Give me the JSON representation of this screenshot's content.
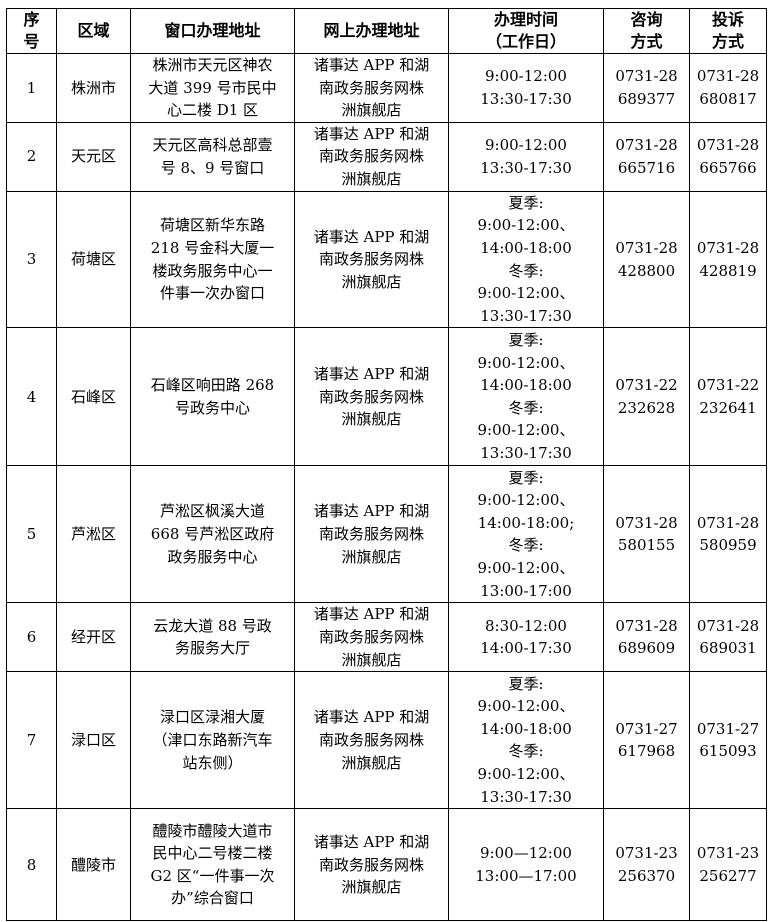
{
  "headers": [
    "序\n号",
    "区域",
    "窗口办理地址",
    "网上办理地址",
    "办理时间\n（工作日）",
    "咨询\n方式",
    "投诉\n方式"
  ],
  "rows": [
    {
      "no": "1",
      "area": "株洲市",
      "window": "株洲市天元区神农\n大道 399 号市民中\n心二楼 D1 区",
      "online": "诸事达 APP 和湖\n南政务服务网株\n洲旗舰店",
      "time": "9:00-12:00\n13:30-17:30",
      "consult": "0731-28\n689377",
      "complaint": "0731-28\n680817"
    },
    {
      "no": "2",
      "area": "天元区",
      "window": "天元区高科总部壹\n号 8、9 号窗口",
      "online": "诸事达 APP 和湖\n南政务服务网株\n洲旗舰店",
      "time": "9:00-12:00\n13:30-17:30",
      "consult": "0731-28\n665716",
      "complaint": "0731-28\n665766"
    },
    {
      "no": "3",
      "area": "荷塘区",
      "window": "荷塘区新华东路\n218 号金科大厦一\n楼政务服务中心一\n件事一次办窗口",
      "online": "诸事达 APP 和湖\n南政务服务网株\n洲旗舰店",
      "time": "夏季:\n9:00-12:00、\n14:00-18:00\n冬季:\n9:00-12:00、\n13:30-17:30",
      "consult": "0731-28\n428800",
      "complaint": "0731-28\n428819"
    },
    {
      "no": "4",
      "area": "石峰区",
      "window": "石峰区响田路 268\n号政务中心",
      "online": "诸事达 APP 和湖\n南政务服务网株\n洲旗舰店",
      "time": "夏季:\n9:00-12:00、\n14:00-18:00\n冬季:\n9:00-12:00、\n13:30-17:30",
      "consult": "0731-22\n232628",
      "complaint": "0731-22\n232641"
    },
    {
      "no": "5",
      "area": "芦淞区",
      "window": "芦淞区枫溪大道\n668 号芦淞区政府\n政务服务中心",
      "online": "诸事达 APP 和湖\n南政务服务网株\n洲旗舰店",
      "time": "夏季:\n9:00-12:00、\n14:00-18:00;\n冬季:\n9:00-12:00、\n13:00-17:00",
      "consult": "0731-28\n580155",
      "complaint": "0731-28\n580959"
    },
    {
      "no": "6",
      "area": "经开区",
      "window": "云龙大道 88 号政\n务服务大厅",
      "online": "诸事达 APP 和湖\n南政务服务网株\n洲旗舰店",
      "time": "8:30-12:00\n14:00-17:30",
      "consult": "0731-28\n689609",
      "complaint": "0731-28\n689031"
    },
    {
      "no": "7",
      "area": "渌口区",
      "window": "渌口区渌湘大厦\n（津口东路新汽车\n站东侧）",
      "online": "诸事达 APP 和湖\n南政务服务网株\n洲旗舰店",
      "time": "夏季:\n9:00-12:00、\n14:00-18:00\n冬季:\n9:00-12:00、\n13:30-17:30",
      "consult": "0731-27\n617968",
      "complaint": "0731-27\n615093"
    },
    {
      "no": "8",
      "area": "醴陵市",
      "window": "醴陵市醴陵大道市\n民中心二号楼二楼\nG2 区“一件事一次\n办”综合窗口",
      "online": "诸事达 APP 和湖\n南政务服务网株\n洲旗舰店",
      "time": "9:00—12:00\n13:00—17:00",
      "consult": "0731-23\n256370",
      "complaint": "0731-23\n256277"
    }
  ]
}
